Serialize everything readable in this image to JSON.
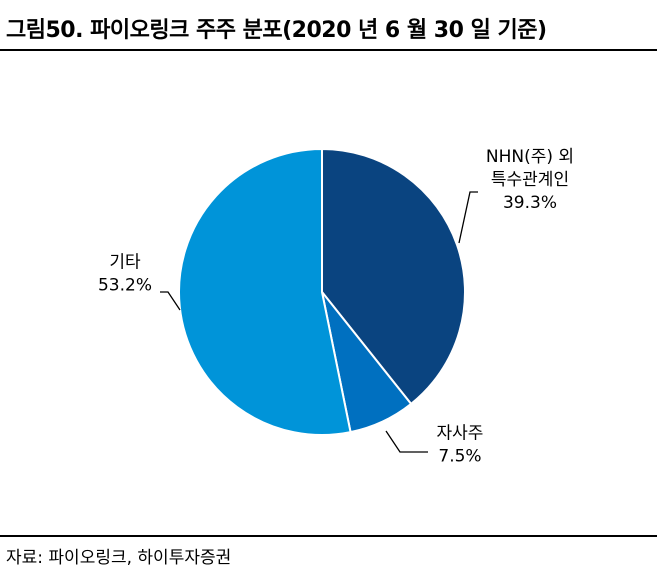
{
  "figure": {
    "title": "그림50.  파이오링크 주주 분포(2020 년 6 월 30 일 기준)",
    "source": "자료: 파이오링크, 하이투자증권"
  },
  "chart_data": {
    "type": "pie",
    "title": "",
    "slices": [
      {
        "label_lines": [
          "NHN(주) 외",
          "특수관계인"
        ],
        "value_text": "39.3%",
        "value": 39.3,
        "color": "#0a4480"
      },
      {
        "label_lines": [
          "자사주"
        ],
        "value_text": "7.5%",
        "value": 7.5,
        "color": "#0070c0"
      },
      {
        "label_lines": [
          "기타"
        ],
        "value_text": "53.2%",
        "value": 53.2,
        "color": "#0094d9"
      }
    ],
    "start_angle": "12 o'clock",
    "direction": "clockwise",
    "legend": "none (leader-line labels)"
  }
}
